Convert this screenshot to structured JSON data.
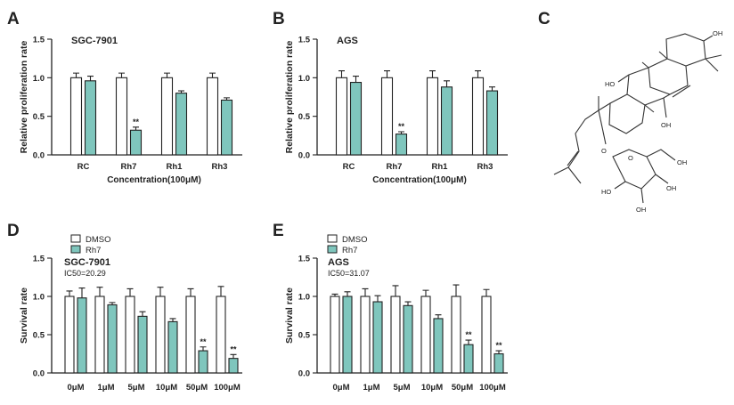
{
  "figure": {
    "panels": {
      "A": "A",
      "B": "B",
      "C": "C",
      "D": "D",
      "E": "E"
    }
  },
  "colors": {
    "control_fill": "#ffffff",
    "treated_fill": "#7fc6bd",
    "stroke": "#222222"
  },
  "legend": {
    "control": "DMSO",
    "treated": "Rh7"
  },
  "molecule": {
    "labels": [
      "OH",
      "HO",
      "OH",
      "O",
      "O",
      "OH",
      "HO",
      "OH",
      "OH"
    ]
  },
  "chart_data": [
    {
      "id": "A",
      "type": "bar",
      "title": "SGC-7901",
      "ylabel": "Relative proliferation rate",
      "xlabel": "Concentration(100μM)",
      "ylim": [
        0,
        1.5
      ],
      "yticks": [
        "0.0",
        "0.5",
        "1.0",
        "1.5"
      ],
      "ytick_values": [
        0,
        0.5,
        1.0,
        1.5
      ],
      "categories": [
        "RC",
        "Rh7",
        "Rh1",
        "Rh3"
      ],
      "series": [
        {
          "name": "control",
          "values": [
            1.0,
            1.0,
            1.0,
            1.0
          ],
          "errors": [
            0.06,
            0.06,
            0.06,
            0.06
          ]
        },
        {
          "name": "treated",
          "values": [
            0.96,
            0.32,
            0.8,
            0.71
          ],
          "errors": [
            0.06,
            0.04,
            0.03,
            0.03
          ]
        }
      ],
      "annotations": [
        {
          "category": 1,
          "series": 1,
          "text": "**"
        }
      ]
    },
    {
      "id": "B",
      "type": "bar",
      "title": "AGS",
      "ylabel": "Relative proliferation rate",
      "xlabel": "Concentration(100μM)",
      "ylim": [
        0,
        1.5
      ],
      "yticks": [
        "0.0",
        "0.5",
        "1.0",
        "1.5"
      ],
      "ytick_values": [
        0,
        0.5,
        1.0,
        1.5
      ],
      "categories": [
        "RC",
        "Rh7",
        "Rh1",
        "Rh3"
      ],
      "series": [
        {
          "name": "control",
          "values": [
            1.0,
            1.0,
            1.0,
            1.0
          ],
          "errors": [
            0.09,
            0.09,
            0.09,
            0.09
          ]
        },
        {
          "name": "treated",
          "values": [
            0.94,
            0.27,
            0.88,
            0.83
          ],
          "errors": [
            0.08,
            0.03,
            0.08,
            0.05
          ]
        }
      ],
      "annotations": [
        {
          "category": 1,
          "series": 1,
          "text": "**"
        }
      ]
    },
    {
      "id": "D",
      "type": "bar",
      "title": "SGC-7901",
      "subtitle": "IC50=20.29",
      "ylabel": "Survival rate",
      "xlabel": "",
      "ylim": [
        0,
        1.5
      ],
      "yticks": [
        "0.0",
        "0.5",
        "1.0",
        "1.5"
      ],
      "ytick_values": [
        0,
        0.5,
        1.0,
        1.5
      ],
      "categories": [
        "0μM",
        "1μM",
        "5μM",
        "10μM",
        "50μM",
        "100μM"
      ],
      "series": [
        {
          "name": "DMSO",
          "values": [
            1.0,
            1.0,
            1.0,
            1.0,
            1.0,
            1.0
          ],
          "errors": [
            0.07,
            0.12,
            0.1,
            0.12,
            0.1,
            0.13
          ]
        },
        {
          "name": "Rh7",
          "values": [
            0.98,
            0.89,
            0.74,
            0.67,
            0.29,
            0.19
          ],
          "errors": [
            0.13,
            0.03,
            0.06,
            0.04,
            0.05,
            0.05
          ]
        }
      ],
      "annotations": [
        {
          "category": 4,
          "series": 1,
          "text": "**"
        },
        {
          "category": 5,
          "series": 1,
          "text": "**"
        }
      ]
    },
    {
      "id": "E",
      "type": "bar",
      "title": "AGS",
      "subtitle": "IC50=31.07",
      "ylabel": "Survival rate",
      "xlabel": "",
      "ylim": [
        0,
        1.5
      ],
      "yticks": [
        "0.0",
        "0.5",
        "1.0",
        "1.5"
      ],
      "ytick_values": [
        0,
        0.5,
        1.0,
        1.5
      ],
      "categories": [
        "0μM",
        "1μM",
        "5μM",
        "10μM",
        "50μM",
        "100μM"
      ],
      "series": [
        {
          "name": "DMSO",
          "values": [
            1.0,
            1.0,
            1.0,
            1.0,
            1.0,
            1.0
          ],
          "errors": [
            0.03,
            0.1,
            0.14,
            0.08,
            0.15,
            0.09
          ]
        },
        {
          "name": "Rh7",
          "values": [
            1.0,
            0.93,
            0.88,
            0.71,
            0.37,
            0.25
          ],
          "errors": [
            0.06,
            0.08,
            0.05,
            0.05,
            0.06,
            0.04
          ]
        }
      ],
      "annotations": [
        {
          "category": 4,
          "series": 1,
          "text": "**"
        },
        {
          "category": 5,
          "series": 1,
          "text": "**"
        }
      ]
    }
  ]
}
